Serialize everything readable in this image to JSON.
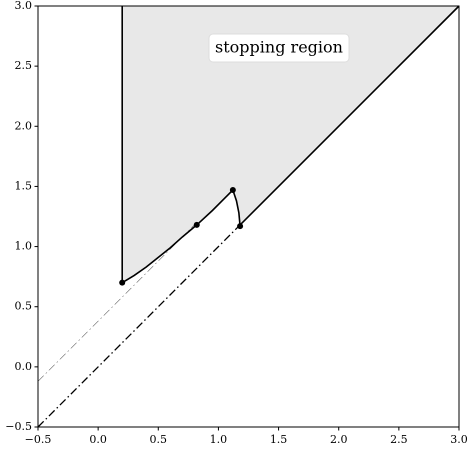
{
  "chart_data": {
    "type": "line",
    "annotation": "stopping region",
    "fill_color": "#e8e8e8",
    "xlim": [
      -0.5,
      3.0
    ],
    "ylim": [
      -0.5,
      3.0
    ],
    "xticks": [
      {
        "value": -0.5,
        "label": "−0.5"
      },
      {
        "value": 0,
        "label": "0.0"
      },
      {
        "value": 0.5,
        "label": "0.5"
      },
      {
        "value": 1,
        "label": "1.0"
      },
      {
        "value": 1.5,
        "label": "1.5"
      },
      {
        "value": 2,
        "label": "2.0"
      },
      {
        "value": 2.5,
        "label": "2.5"
      },
      {
        "value": 3,
        "label": "3.0"
      }
    ],
    "yticks": [
      {
        "value": -0.5,
        "label": "−0.5"
      },
      {
        "value": 0,
        "label": "0.0"
      },
      {
        "value": 0.5,
        "label": "0.5"
      },
      {
        "value": 1,
        "label": "1.0"
      },
      {
        "value": 1.5,
        "label": "1.5"
      },
      {
        "value": 2,
        "label": "2.0"
      },
      {
        "value": 2.5,
        "label": "2.5"
      },
      {
        "value": 3,
        "label": "3.0"
      }
    ],
    "series": [
      {
        "color": "#000000",
        "linestyle": "solid",
        "linewidth": 1.6,
        "x": [
          0.2,
          0.3,
          0.4,
          0.5,
          0.6,
          0.7,
          0.82,
          0.95,
          1.05,
          1.12,
          1.15,
          1.17,
          1.18
        ],
        "values": [
          0.7,
          0.76,
          0.83,
          0.91,
          0.99,
          1.08,
          1.18,
          1.3,
          1.4,
          1.47,
          1.38,
          1.28,
          1.17
        ]
      },
      {
        "color": "#000000",
        "linestyle": "solid",
        "linewidth": 1.6,
        "x": [
          0.2,
          0.2
        ],
        "values": [
          0.7,
          3.0
        ]
      },
      {
        "color": "#000000",
        "linestyle": "solid",
        "linewidth": 1.6,
        "x": [
          1.18,
          3.0
        ],
        "values": [
          1.18,
          3.0
        ]
      },
      {
        "color": "#000000",
        "linestyle": "dashdot",
        "linewidth": 1.3,
        "x": [
          -0.5,
          1.18
        ],
        "values": [
          -0.5,
          1.18
        ]
      },
      {
        "color": "#000000",
        "linestyle": "dashdot",
        "linewidth": 0.5,
        "x": [
          -0.5,
          0.82
        ],
        "values": [
          -0.12,
          1.2
        ]
      }
    ],
    "points": {
      "color": "#000000",
      "x": [
        0.2,
        0.82,
        1.12,
        1.18
      ],
      "values": [
        0.7,
        1.18,
        1.47,
        1.17
      ]
    }
  }
}
